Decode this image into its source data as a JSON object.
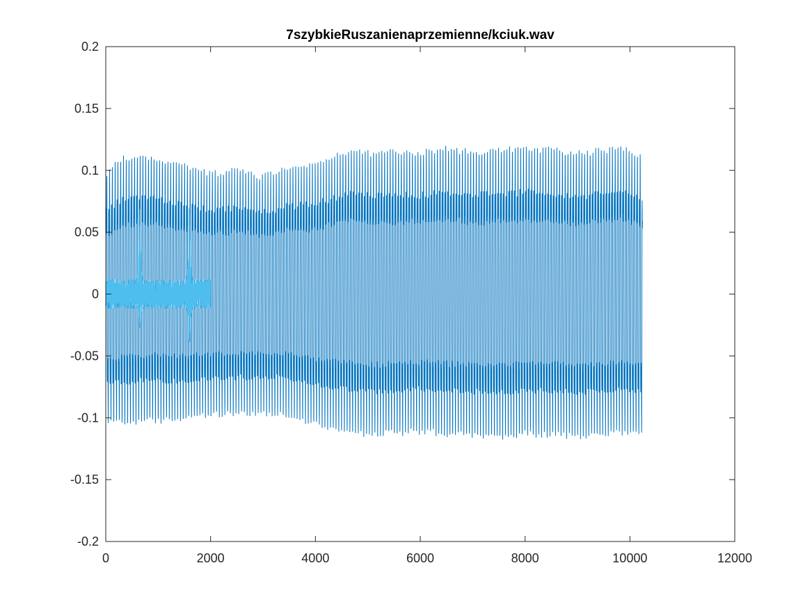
{
  "chart_data": {
    "type": "line",
    "title": "7szybkieRuszanienaprzemienne/kciuk.wav",
    "xlabel": "",
    "ylabel": "",
    "xlim": [
      0,
      12000
    ],
    "ylim": [
      -0.2,
      0.2
    ],
    "xticks": [
      0,
      2000,
      4000,
      6000,
      8000,
      10000,
      12000
    ],
    "xtick_labels": [
      "0",
      "2000",
      "4000",
      "6000",
      "8000",
      "10000",
      "12000"
    ],
    "yticks": [
      -0.2,
      -0.15,
      -0.1,
      -0.05,
      0,
      0.05,
      0.1,
      0.15,
      0.2
    ],
    "ytick_labels": [
      "-0.2",
      "-0.15",
      "-0.1",
      "-0.05",
      "0",
      "0.05",
      "0.1",
      "0.15",
      "0.2"
    ],
    "grid": false,
    "box": true,
    "series": [
      {
        "color": "#0072BD",
        "samples": 10240,
        "oscillation_period": 53,
        "envelope": {
          "x": [
            0,
            300,
            900,
            1300,
            1700,
            2000,
            2500,
            3000,
            3500,
            4000,
            4300,
            4700,
            5000,
            5500,
            6000,
            6500,
            7000,
            7500,
            8000,
            8500,
            9000,
            9500,
            9800,
            10240
          ],
          "upper": [
            0.13,
            0.145,
            0.146,
            0.14,
            0.135,
            0.13,
            0.133,
            0.127,
            0.135,
            0.14,
            0.147,
            0.155,
            0.152,
            0.153,
            0.152,
            0.156,
            0.153,
            0.155,
            0.156,
            0.155,
            0.152,
            0.155,
            0.157,
            0.148
          ],
          "lower": [
            -0.135,
            -0.14,
            -0.138,
            -0.137,
            -0.133,
            -0.13,
            -0.131,
            -0.128,
            -0.132,
            -0.14,
            -0.146,
            -0.15,
            -0.152,
            -0.151,
            -0.149,
            -0.152,
            -0.152,
            -0.154,
            -0.152,
            -0.152,
            -0.153,
            -0.152,
            -0.15,
            -0.15
          ]
        }
      },
      {
        "color": "#4DBEEE",
        "samples": 2000,
        "noise_amplitude": 0.012,
        "spikes": [
          {
            "x": 650,
            "max": 0.067,
            "min": -0.02
          },
          {
            "x": 1600,
            "max": 0.065,
            "min": -0.038
          }
        ]
      }
    ]
  }
}
